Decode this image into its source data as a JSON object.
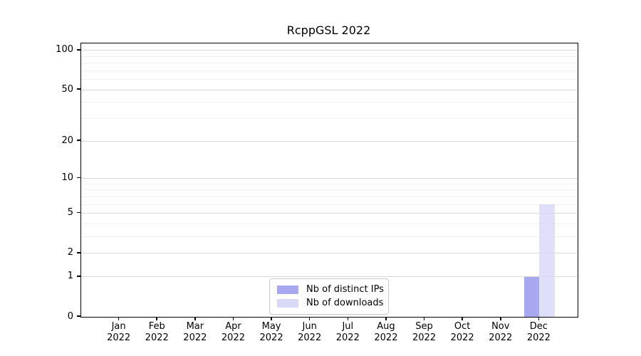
{
  "chart_data": {
    "type": "bar",
    "title": "RcppGSL 2022",
    "categories": [
      "Jan",
      "Feb",
      "Mar",
      "Apr",
      "May",
      "Jun",
      "Jul",
      "Aug",
      "Sep",
      "Oct",
      "Nov",
      "Dec"
    ],
    "x_year": "2022",
    "series": [
      {
        "name": "Nb of distinct IPs",
        "color": "#a8a8f0",
        "values": [
          0,
          0,
          0,
          0,
          0,
          0,
          0,
          0,
          0,
          0,
          0,
          1
        ]
      },
      {
        "name": "Nb of downloads",
        "color": "#d9d9f8",
        "values": [
          0,
          0,
          0,
          0,
          0,
          0,
          0,
          0,
          0,
          0,
          0,
          6
        ]
      }
    ],
    "xlabel": "",
    "ylabel": "",
    "yscale": "log1p",
    "yticks": [
      0,
      1,
      2,
      5,
      10,
      20,
      50,
      100
    ],
    "ylim": [
      0,
      113
    ],
    "grid": true,
    "legend_position": "bottom-center"
  }
}
